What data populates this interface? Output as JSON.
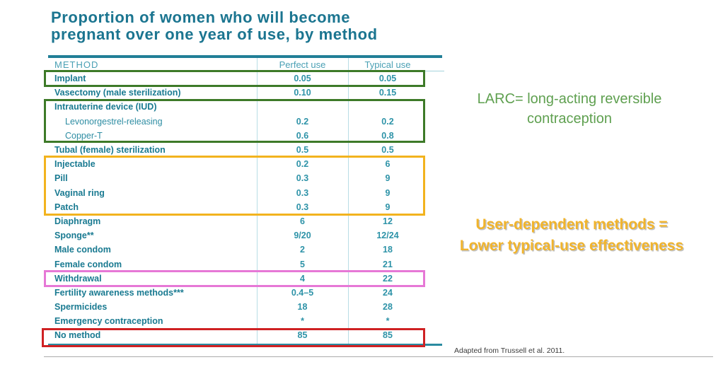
{
  "title": {
    "line1": "Proportion of women who will become",
    "line2": "pregnant over one year of use, by method"
  },
  "table": {
    "columns": [
      "METHOD",
      "Perfect use",
      "Typical use"
    ],
    "rows": [
      {
        "method": "Implant",
        "perfect": "0.05",
        "typical": "0.05",
        "indent": false
      },
      {
        "method": "Vasectomy (male sterilization)",
        "perfect": "0.10",
        "typical": "0.15",
        "indent": false
      },
      {
        "method": "Intrauterine device (IUD)",
        "perfect": "",
        "typical": "",
        "indent": false
      },
      {
        "method": "Levonorgestrel-releasing",
        "perfect": "0.2",
        "typical": "0.2",
        "indent": true
      },
      {
        "method": "Copper-T",
        "perfect": "0.6",
        "typical": "0.8",
        "indent": true
      },
      {
        "method": "Tubal (female) sterilization",
        "perfect": "0.5",
        "typical": "0.5",
        "indent": false
      },
      {
        "method": "Injectable",
        "perfect": "0.2",
        "typical": "6",
        "indent": false
      },
      {
        "method": "Pill",
        "perfect": "0.3",
        "typical": "9",
        "indent": false
      },
      {
        "method": "Vaginal ring",
        "perfect": "0.3",
        "typical": "9",
        "indent": false
      },
      {
        "method": "Patch",
        "perfect": "0.3",
        "typical": "9",
        "indent": false
      },
      {
        "method": "Diaphragm",
        "perfect": "6",
        "typical": "12",
        "indent": false
      },
      {
        "method": "Sponge**",
        "perfect": "9/20",
        "typical": "12/24",
        "indent": false
      },
      {
        "method": "Male condom",
        "perfect": "2",
        "typical": "18",
        "indent": false
      },
      {
        "method": "Female condom",
        "perfect": "5",
        "typical": "21",
        "indent": false
      },
      {
        "method": "Withdrawal",
        "perfect": "4",
        "typical": "22",
        "indent": false
      },
      {
        "method": "Fertility awareness methods***",
        "perfect": "0.4–5",
        "typical": "24",
        "indent": false
      },
      {
        "method": "Spermicides",
        "perfect": "18",
        "typical": "28",
        "indent": false
      },
      {
        "method": "Emergency contraception",
        "perfect": "*",
        "typical": "*",
        "indent": false
      },
      {
        "method": "No method",
        "perfect": "85",
        "typical": "85",
        "indent": false
      }
    ]
  },
  "highlights": {
    "implant": {
      "rows": "Implant",
      "color": "#3d7a28"
    },
    "iud": {
      "rows": "Intrauterine device (IUD) group",
      "color": "#3d7a28"
    },
    "userdep": {
      "rows": "Injectable / Pill / Vaginal ring / Patch",
      "color": "#f2b31e"
    },
    "withdrawal": {
      "rows": "Withdrawal",
      "color": "#e678d6"
    },
    "nomethod": {
      "rows": "No method",
      "color": "#cf2123"
    }
  },
  "annotations": {
    "larc": {
      "line1": "LARC= long-acting reversible",
      "line2": "contraception",
      "color": "#5fa050"
    },
    "user_dependent": {
      "line1": "User-dependent methods =",
      "line2": "Lower typical-use effectiveness",
      "color": "#f1b42c"
    },
    "source": "Adapted from Trussell et al. 2011."
  },
  "colors": {
    "title_teal": "#1b7590",
    "label_teal": "#197a91",
    "value_teal": "#2e93a8",
    "header_teal": "#4aa0b4",
    "top_rule_teal": "#217f97",
    "divider_teal": "#b8dde5",
    "green_border": "#3d7a28",
    "green_text": "#5fa050",
    "gold": "#f2b31e",
    "pink": "#e678d6",
    "red": "#cf2123",
    "source_text": "#3c3c3c",
    "bottom_line_gray": "#ababab"
  }
}
